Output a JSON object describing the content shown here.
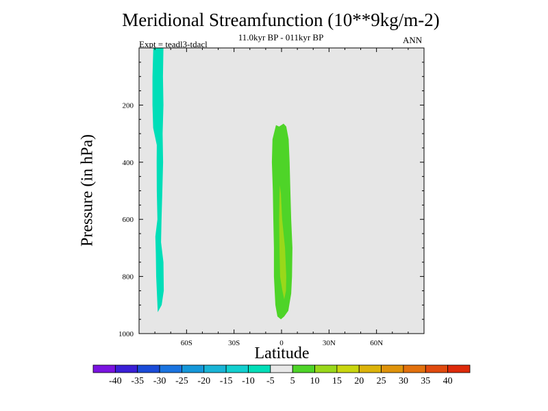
{
  "chart_data": {
    "type": "contour",
    "title": "Meridional Streamfunction (10**9kg/m-2)",
    "subtitle": "11.0kyr BP - 011kyr BP",
    "left_string": "Expt = teadl3-tdacl",
    "right_string": "ANN",
    "xlabel": "Latitude",
    "ylabel": "Pressure (in hPa)",
    "x_range": [
      -90,
      90
    ],
    "y_range": [
      0,
      1000
    ],
    "y_inverted": true,
    "x_ticks": [
      {
        "value": -60,
        "label": "60S"
      },
      {
        "value": -30,
        "label": "30S"
      },
      {
        "value": 0,
        "label": "0"
      },
      {
        "value": 30,
        "label": "30N"
      },
      {
        "value": 60,
        "label": "60N"
      }
    ],
    "y_ticks": [
      {
        "value": 200,
        "label": "200"
      },
      {
        "value": 400,
        "label": "400"
      },
      {
        "value": 600,
        "label": "600"
      },
      {
        "value": 800,
        "label": "800"
      },
      {
        "value": 1000,
        "label": "1000"
      }
    ],
    "background_color": "#e6e6e6",
    "contour_levels": [
      -40,
      -35,
      -30,
      -25,
      -20,
      -15,
      -10,
      -5,
      5,
      10,
      15,
      20,
      25,
      30,
      35,
      40
    ],
    "colorbar_colors": [
      "#7a13e0",
      "#3a1fd6",
      "#1a4bd8",
      "#1a74e0",
      "#1597d9",
      "#19b4d6",
      "#12cfcf",
      "#00deb8",
      "#e8e8e8",
      "#4ed428",
      "#99d81a",
      "#c9d60f",
      "#dcb30a",
      "#df930b",
      "#e2710d",
      "#e04a0e",
      "#dd2a0a"
    ],
    "regions": [
      {
        "name": "southern-negative-cell",
        "range": "-10 to -5",
        "color": "#00deb8",
        "polygon": [
          [
            -81,
            0
          ],
          [
            -74.6,
            0
          ],
          [
            -74.9,
            100
          ],
          [
            -74.6,
            200
          ],
          [
            -75.1,
            300
          ],
          [
            -74.8,
            400
          ],
          [
            -75.3,
            500
          ],
          [
            -75.8,
            600
          ],
          [
            -76.1,
            680
          ],
          [
            -74.6,
            750
          ],
          [
            -74.4,
            850
          ],
          [
            -75.7,
            900
          ],
          [
            -78.2,
            925
          ],
          [
            -79.2,
            800
          ],
          [
            -79.4,
            720
          ],
          [
            -79.7,
            660
          ],
          [
            -78.4,
            600
          ],
          [
            -78.8,
            500
          ],
          [
            -78.9,
            400
          ],
          [
            -78.8,
            340
          ],
          [
            -81.1,
            280
          ],
          [
            -81.5,
            200
          ],
          [
            -81.5,
            100
          ]
        ]
      },
      {
        "name": "equatorial-positive-cell",
        "range": "5 to 10",
        "color": "#4ed428",
        "polygon": [
          [
            -3.5,
            270
          ],
          [
            -1.5,
            275
          ],
          [
            1.3,
            265
          ],
          [
            3,
            275
          ],
          [
            4.5,
            320
          ],
          [
            5.1,
            400
          ],
          [
            5.6,
            500
          ],
          [
            6.1,
            600
          ],
          [
            6.9,
            700
          ],
          [
            6.6,
            800
          ],
          [
            6.1,
            860
          ],
          [
            4.3,
            920
          ],
          [
            1.7,
            940
          ],
          [
            -0.4,
            950
          ],
          [
            -2.6,
            940
          ],
          [
            -3.9,
            900
          ],
          [
            -4.8,
            800
          ],
          [
            -4.8,
            700
          ],
          [
            -5.2,
            600
          ],
          [
            -5.5,
            500
          ],
          [
            -6.1,
            400
          ],
          [
            -5.7,
            320
          ]
        ]
      },
      {
        "name": "equatorial-inner-cell",
        "range": "10 to 15",
        "color": "#99d81a",
        "polygon": [
          [
            -1.1,
            480
          ],
          [
            -0.4,
            510
          ],
          [
            0.4,
            600
          ],
          [
            2.2,
            700
          ],
          [
            3,
            800
          ],
          [
            2.8,
            850
          ],
          [
            1.7,
            880
          ],
          [
            0.4,
            845
          ],
          [
            -0.9,
            800
          ],
          [
            -1.3,
            700
          ],
          [
            -1.5,
            600
          ],
          [
            -1.3,
            520
          ]
        ]
      }
    ]
  }
}
